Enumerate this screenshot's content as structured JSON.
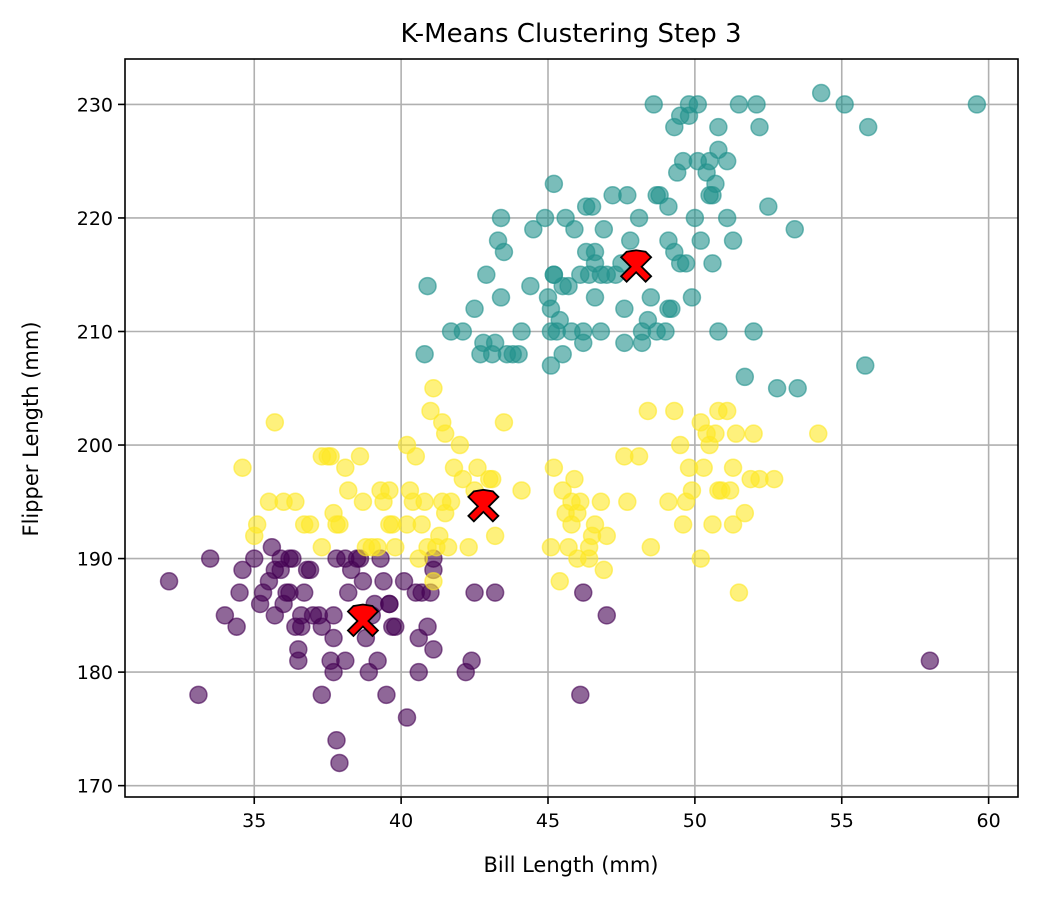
{
  "chart_data": {
    "type": "scatter",
    "title": "K-Means Clustering Step 3",
    "xlabel": "Bill Length (mm)",
    "ylabel": "Flipper Length (mm)",
    "xlim": [
      30.6,
      61.0
    ],
    "ylim": [
      169.0,
      234.0
    ],
    "xticks": [
      35,
      40,
      45,
      50,
      55,
      60
    ],
    "yticks": [
      170,
      180,
      190,
      200,
      210,
      220,
      230
    ],
    "grid": true,
    "point_opacity": 0.6,
    "series": [
      {
        "color": "#440154",
        "points": [
          [
            32.1,
            188
          ],
          [
            33.1,
            178
          ],
          [
            33.5,
            190
          ],
          [
            34.0,
            185
          ],
          [
            34.4,
            184
          ],
          [
            34.5,
            187
          ],
          [
            34.6,
            189
          ],
          [
            35.0,
            190
          ],
          [
            35.2,
            186
          ],
          [
            35.3,
            187
          ],
          [
            35.5,
            188
          ],
          [
            35.6,
            191
          ],
          [
            35.7,
            185
          ],
          [
            35.7,
            189
          ],
          [
            35.9,
            190
          ],
          [
            35.9,
            189
          ],
          [
            36.0,
            186
          ],
          [
            36.1,
            187
          ],
          [
            36.2,
            187
          ],
          [
            36.2,
            190
          ],
          [
            36.3,
            190
          ],
          [
            36.4,
            184
          ],
          [
            36.5,
            181
          ],
          [
            36.5,
            182
          ],
          [
            36.6,
            184
          ],
          [
            36.6,
            185
          ],
          [
            36.7,
            187
          ],
          [
            36.8,
            189
          ],
          [
            36.9,
            189
          ],
          [
            37.0,
            185
          ],
          [
            37.2,
            185
          ],
          [
            37.3,
            184
          ],
          [
            37.3,
            178
          ],
          [
            37.6,
            181
          ],
          [
            37.7,
            180
          ],
          [
            37.7,
            183
          ],
          [
            37.7,
            185
          ],
          [
            37.8,
            174
          ],
          [
            37.8,
            190
          ],
          [
            37.9,
            172
          ],
          [
            38.1,
            181
          ],
          [
            38.1,
            190
          ],
          [
            38.2,
            187
          ],
          [
            38.3,
            189
          ],
          [
            38.5,
            190
          ],
          [
            38.6,
            190
          ],
          [
            38.7,
            188
          ],
          [
            38.8,
            183
          ],
          [
            38.9,
            180
          ],
          [
            39.0,
            185
          ],
          [
            39.1,
            186
          ],
          [
            39.2,
            181
          ],
          [
            39.3,
            190
          ],
          [
            39.4,
            188
          ],
          [
            39.5,
            178
          ],
          [
            39.6,
            186
          ],
          [
            39.6,
            186
          ],
          [
            39.7,
            184
          ],
          [
            39.8,
            184
          ],
          [
            40.1,
            188
          ],
          [
            40.2,
            176
          ],
          [
            40.5,
            187
          ],
          [
            40.6,
            180
          ],
          [
            40.6,
            183
          ],
          [
            40.7,
            187
          ],
          [
            40.9,
            184
          ],
          [
            41.0,
            187
          ],
          [
            41.1,
            182
          ],
          [
            41.1,
            189
          ],
          [
            41.1,
            190
          ],
          [
            42.2,
            180
          ],
          [
            42.4,
            181
          ],
          [
            42.5,
            187
          ],
          [
            43.2,
            187
          ],
          [
            46.1,
            178
          ],
          [
            46.2,
            187
          ],
          [
            47.0,
            185
          ],
          [
            58.0,
            181
          ]
        ]
      },
      {
        "color": "#21918c",
        "points": [
          [
            40.8,
            208
          ],
          [
            40.9,
            214
          ],
          [
            41.7,
            210
          ],
          [
            42.1,
            210
          ],
          [
            42.5,
            212
          ],
          [
            42.7,
            208
          ],
          [
            42.8,
            209
          ],
          [
            42.9,
            215
          ],
          [
            43.1,
            208
          ],
          [
            43.2,
            209
          ],
          [
            43.3,
            218
          ],
          [
            43.4,
            220
          ],
          [
            43.4,
            213
          ],
          [
            43.5,
            217
          ],
          [
            43.6,
            208
          ],
          [
            43.8,
            208
          ],
          [
            44.0,
            208
          ],
          [
            44.1,
            210
          ],
          [
            44.4,
            214
          ],
          [
            44.5,
            219
          ],
          [
            44.9,
            220
          ],
          [
            45.0,
            213
          ],
          [
            45.1,
            210
          ],
          [
            45.1,
            212
          ],
          [
            45.1,
            207
          ],
          [
            45.2,
            215
          ],
          [
            45.2,
            223
          ],
          [
            45.2,
            215
          ],
          [
            45.3,
            210
          ],
          [
            45.4,
            211
          ],
          [
            45.5,
            214
          ],
          [
            45.5,
            208
          ],
          [
            45.6,
            220
          ],
          [
            45.7,
            214
          ],
          [
            45.8,
            210
          ],
          [
            45.9,
            219
          ],
          [
            46.1,
            215
          ],
          [
            46.2,
            210
          ],
          [
            46.2,
            209
          ],
          [
            46.3,
            217
          ],
          [
            46.3,
            221
          ],
          [
            46.4,
            215
          ],
          [
            46.5,
            221
          ],
          [
            46.6,
            213
          ],
          [
            46.6,
            217
          ],
          [
            46.6,
            216
          ],
          [
            46.8,
            210
          ],
          [
            46.8,
            215
          ],
          [
            46.9,
            219
          ],
          [
            47.0,
            215
          ],
          [
            47.2,
            222
          ],
          [
            47.3,
            215
          ],
          [
            47.5,
            216
          ],
          [
            47.6,
            212
          ],
          [
            47.6,
            209
          ],
          [
            47.7,
            222
          ],
          [
            47.8,
            218
          ],
          [
            48.1,
            220
          ],
          [
            48.2,
            210
          ],
          [
            48.2,
            209
          ],
          [
            48.4,
            211
          ],
          [
            48.5,
            213
          ],
          [
            48.6,
            230
          ],
          [
            48.7,
            222
          ],
          [
            48.7,
            210
          ],
          [
            48.8,
            222
          ],
          [
            49.0,
            210
          ],
          [
            49.1,
            212
          ],
          [
            49.1,
            221
          ],
          [
            49.1,
            218
          ],
          [
            49.2,
            212
          ],
          [
            49.3,
            217
          ],
          [
            49.3,
            228
          ],
          [
            49.4,
            224
          ],
          [
            49.5,
            216
          ],
          [
            49.5,
            229
          ],
          [
            49.6,
            225
          ],
          [
            49.7,
            216
          ],
          [
            49.8,
            229
          ],
          [
            49.8,
            230
          ],
          [
            49.9,
            213
          ],
          [
            50.0,
            220
          ],
          [
            50.1,
            225
          ],
          [
            50.1,
            230
          ],
          [
            50.2,
            218
          ],
          [
            50.4,
            224
          ],
          [
            50.5,
            225
          ],
          [
            50.5,
            222
          ],
          [
            50.6,
            222
          ],
          [
            50.6,
            216
          ],
          [
            50.7,
            223
          ],
          [
            50.8,
            228
          ],
          [
            50.8,
            226
          ],
          [
            50.8,
            210
          ],
          [
            51.1,
            220
          ],
          [
            51.1,
            225
          ],
          [
            51.3,
            218
          ],
          [
            51.5,
            230
          ],
          [
            51.7,
            206
          ],
          [
            52.0,
            210
          ],
          [
            52.1,
            230
          ],
          [
            52.2,
            228
          ],
          [
            52.5,
            221
          ],
          [
            52.8,
            205
          ],
          [
            53.4,
            219
          ],
          [
            53.5,
            205
          ],
          [
            54.3,
            231
          ],
          [
            55.1,
            230
          ],
          [
            55.8,
            207
          ],
          [
            55.9,
            228
          ],
          [
            59.6,
            230
          ]
        ]
      },
      {
        "color": "#fde725",
        "points": [
          [
            34.6,
            198
          ],
          [
            35.0,
            192
          ],
          [
            35.1,
            193
          ],
          [
            35.5,
            195
          ],
          [
            35.7,
            202
          ],
          [
            36.0,
            195
          ],
          [
            36.4,
            195
          ],
          [
            36.7,
            193
          ],
          [
            36.9,
            193
          ],
          [
            37.3,
            191
          ],
          [
            37.3,
            199
          ],
          [
            37.5,
            199
          ],
          [
            37.6,
            199
          ],
          [
            37.7,
            194
          ],
          [
            37.8,
            193
          ],
          [
            37.9,
            193
          ],
          [
            38.1,
            198
          ],
          [
            38.2,
            196
          ],
          [
            38.6,
            199
          ],
          [
            38.7,
            195
          ],
          [
            38.8,
            191
          ],
          [
            39.0,
            191
          ],
          [
            39.2,
            191
          ],
          [
            39.3,
            196
          ],
          [
            39.4,
            195
          ],
          [
            39.6,
            196
          ],
          [
            39.6,
            193
          ],
          [
            39.7,
            193
          ],
          [
            39.8,
            191
          ],
          [
            40.2,
            200
          ],
          [
            40.2,
            193
          ],
          [
            40.3,
            196
          ],
          [
            40.4,
            195
          ],
          [
            40.5,
            199
          ],
          [
            40.6,
            190
          ],
          [
            40.7,
            193
          ],
          [
            40.8,
            195
          ],
          [
            40.9,
            191
          ],
          [
            41.0,
            203
          ],
          [
            41.1,
            205
          ],
          [
            41.1,
            188
          ],
          [
            41.2,
            191
          ],
          [
            41.3,
            192
          ],
          [
            41.4,
            195
          ],
          [
            41.4,
            202
          ],
          [
            41.5,
            201
          ],
          [
            41.5,
            194
          ],
          [
            41.6,
            191
          ],
          [
            41.7,
            195
          ],
          [
            41.8,
            198
          ],
          [
            42.0,
            200
          ],
          [
            42.1,
            197
          ],
          [
            42.3,
            191
          ],
          [
            42.5,
            196
          ],
          [
            42.6,
            198
          ],
          [
            43.0,
            197
          ],
          [
            43.1,
            197
          ],
          [
            43.2,
            192
          ],
          [
            43.5,
            202
          ],
          [
            44.1,
            196
          ],
          [
            45.1,
            191
          ],
          [
            45.2,
            198
          ],
          [
            45.4,
            188
          ],
          [
            45.5,
            196
          ],
          [
            45.6,
            194
          ],
          [
            45.7,
            191
          ],
          [
            45.8,
            195
          ],
          [
            45.8,
            193
          ],
          [
            45.9,
            197
          ],
          [
            46.0,
            190
          ],
          [
            46.0,
            194
          ],
          [
            46.1,
            195
          ],
          [
            46.4,
            190
          ],
          [
            46.4,
            191
          ],
          [
            46.5,
            192
          ],
          [
            46.6,
            193
          ],
          [
            46.8,
            195
          ],
          [
            46.9,
            189
          ],
          [
            47.0,
            192
          ],
          [
            47.6,
            199
          ],
          [
            47.7,
            195
          ],
          [
            48.1,
            199
          ],
          [
            48.4,
            203
          ],
          [
            48.5,
            191
          ],
          [
            49.1,
            195
          ],
          [
            49.3,
            203
          ],
          [
            49.5,
            200
          ],
          [
            49.6,
            193
          ],
          [
            49.7,
            195
          ],
          [
            49.8,
            198
          ],
          [
            49.9,
            196
          ],
          [
            50.2,
            190
          ],
          [
            50.2,
            202
          ],
          [
            50.3,
            198
          ],
          [
            50.4,
            201
          ],
          [
            50.5,
            200
          ],
          [
            50.6,
            193
          ],
          [
            50.7,
            201
          ],
          [
            50.8,
            203
          ],
          [
            50.8,
            196
          ],
          [
            50.9,
            196
          ],
          [
            51.1,
            203
          ],
          [
            51.2,
            196
          ],
          [
            51.3,
            198
          ],
          [
            51.3,
            193
          ],
          [
            51.4,
            201
          ],
          [
            51.5,
            187
          ],
          [
            51.7,
            194
          ],
          [
            51.9,
            197
          ],
          [
            52.0,
            201
          ],
          [
            52.2,
            197
          ],
          [
            52.7,
            197
          ],
          [
            54.2,
            201
          ]
        ]
      }
    ],
    "centroids": {
      "color": "#ff0000",
      "points": [
        [
          38.7,
          184.5
        ],
        [
          48.0,
          215.7
        ],
        [
          42.8,
          194.6
        ]
      ]
    }
  }
}
